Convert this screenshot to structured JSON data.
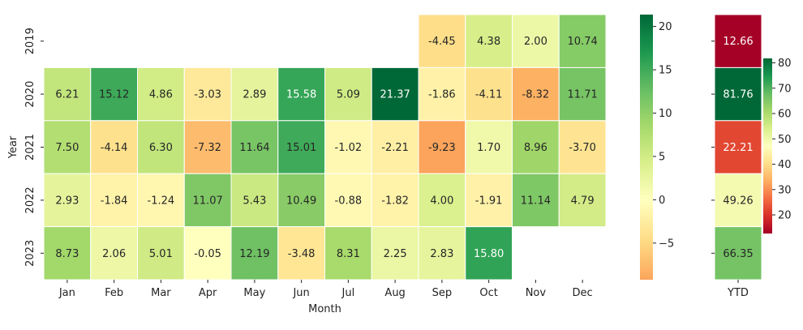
{
  "chart_data": [
    {
      "type": "heatmap",
      "title": "",
      "xlabel": "Month",
      "ylabel": "Year",
      "x_categories": [
        "Jan",
        "Feb",
        "Mar",
        "Apr",
        "May",
        "Jun",
        "Jul",
        "Aug",
        "Sep",
        "Oct",
        "Nov",
        "Dec"
      ],
      "y_categories": [
        "2019",
        "2020",
        "2021",
        "2022",
        "2023"
      ],
      "values": [
        [
          null,
          null,
          null,
          null,
          null,
          null,
          null,
          null,
          -4.45,
          4.38,
          2.0,
          10.74
        ],
        [
          6.21,
          15.12,
          4.86,
          -3.03,
          2.89,
          15.58,
          5.09,
          21.37,
          -1.86,
          -4.11,
          -8.32,
          11.71
        ],
        [
          7.5,
          -4.14,
          6.3,
          -7.32,
          11.64,
          15.01,
          -1.02,
          -2.21,
          -9.23,
          1.7,
          8.96,
          -3.7
        ],
        [
          2.93,
          -1.84,
          -1.24,
          11.07,
          5.43,
          10.49,
          -0.88,
          -1.82,
          4.0,
          -1.91,
          11.14,
          4.79
        ],
        [
          8.73,
          2.06,
          5.01,
          -0.05,
          12.19,
          -3.48,
          8.31,
          2.25,
          2.83,
          15.8,
          null,
          null
        ]
      ],
      "labels": [
        [
          "",
          "",
          "",
          "",
          "",
          "",
          "",
          "",
          "-4.45",
          "4.38",
          "2.00",
          "10.74"
        ],
        [
          "6.21",
          "15.12",
          "4.86",
          "-3.03",
          "2.89",
          "15.58",
          "5.09",
          "21.37",
          "-1.86",
          "-4.11",
          "-8.32",
          "11.71"
        ],
        [
          "7.50",
          "-4.14",
          "6.30",
          "-7.32",
          "11.64",
          "15.01",
          "-1.02",
          "-2.21",
          "-9.23",
          "1.70",
          "8.96",
          "-3.70"
        ],
        [
          "2.93",
          "-1.84",
          "-1.24",
          "11.07",
          "5.43",
          "10.49",
          "-0.88",
          "-1.82",
          "4.00",
          "-1.91",
          "11.14",
          "4.79"
        ],
        [
          "8.73",
          "2.06",
          "5.01",
          "-0.05",
          "12.19",
          "-3.48",
          "8.31",
          "2.25",
          "2.83",
          "15.80",
          "",
          ""
        ]
      ],
      "colormap": "RdYlGn",
      "color_range": [
        -9.23,
        21.37
      ],
      "color_center": 0,
      "colorbar_ticks": [
        "−5",
        "0",
        "5",
        "10",
        "15",
        "20"
      ],
      "colorbar_tick_values": [
        -5,
        0,
        5,
        10,
        15,
        20
      ]
    },
    {
      "type": "heatmap",
      "title": "",
      "xlabel": "",
      "ylabel": "",
      "x_categories": [
        "YTD"
      ],
      "y_categories": [
        "2019",
        "2020",
        "2021",
        "2022",
        "2023"
      ],
      "values": [
        [
          12.66
        ],
        [
          81.76
        ],
        [
          22.21
        ],
        [
          49.26
        ],
        [
          66.35
        ]
      ],
      "labels": [
        [
          "12.66"
        ],
        [
          "81.76"
        ],
        [
          "22.21"
        ],
        [
          "49.26"
        ],
        [
          "66.35"
        ]
      ],
      "colormap": "RdYlGn",
      "color_range": [
        12.66,
        81.76
      ],
      "colorbar_ticks": [
        "20",
        "30",
        "40",
        "50",
        "60",
        "70",
        "80"
      ],
      "colorbar_tick_values": [
        20,
        30,
        40,
        50,
        60,
        70,
        80
      ]
    }
  ]
}
